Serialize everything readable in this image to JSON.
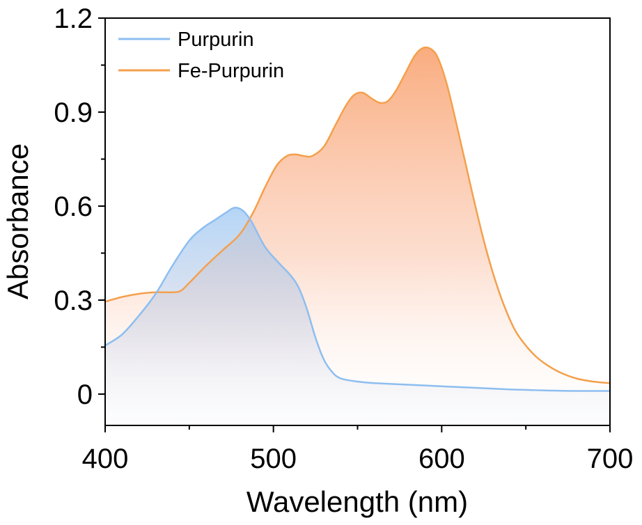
{
  "chart_data": {
    "type": "area",
    "title": "",
    "xlabel": "Wavelength (nm)",
    "ylabel": "Absorbance",
    "xlim": [
      400,
      700
    ],
    "ylim": [
      -0.1,
      1.2
    ],
    "xticks": [
      400,
      500,
      600,
      700
    ],
    "xtick_labels": [
      "400",
      "500",
      "600",
      "700"
    ],
    "yticks": [
      0,
      0.3,
      0.6,
      0.9,
      1.2
    ],
    "ytick_labels": [
      "0",
      "0.3",
      "0.6",
      "0.9",
      "1.2"
    ],
    "grid": false,
    "legend_position": "top-left",
    "series": [
      {
        "name": "Purpurin",
        "color": "#8DBEF0",
        "fill_color": "#A8CFF5",
        "x": [
          400,
          410,
          420,
          430,
          440,
          450,
          458,
          465,
          472,
          477,
          482,
          487,
          495,
          503,
          510,
          515,
          520,
          525,
          530,
          535,
          540,
          550,
          560,
          580,
          600,
          620,
          640,
          660,
          680,
          700
        ],
        "y": [
          0.155,
          0.19,
          0.25,
          0.32,
          0.41,
          0.49,
          0.53,
          0.555,
          0.58,
          0.595,
          0.585,
          0.55,
          0.47,
          0.42,
          0.38,
          0.34,
          0.27,
          0.18,
          0.11,
          0.07,
          0.05,
          0.04,
          0.035,
          0.03,
          0.025,
          0.02,
          0.015,
          0.012,
          0.01,
          0.01
        ]
      },
      {
        "name": "Fe-Purpurin",
        "color": "#F4A04C",
        "fill_color": "#F9A878",
        "x": [
          400,
          410,
          420,
          430,
          440,
          445,
          450,
          460,
          470,
          480,
          488,
          495,
          502,
          508,
          513,
          518,
          523,
          530,
          537,
          543,
          548,
          553,
          558,
          563,
          568,
          573,
          578,
          584,
          589,
          594,
          598,
          603,
          608,
          614,
          620,
          626,
          632,
          638,
          644,
          650,
          656,
          662,
          670,
          680,
          690,
          700
        ],
        "y": [
          0.295,
          0.31,
          0.32,
          0.325,
          0.325,
          0.33,
          0.355,
          0.41,
          0.46,
          0.51,
          0.58,
          0.66,
          0.73,
          0.76,
          0.765,
          0.76,
          0.76,
          0.79,
          0.86,
          0.92,
          0.955,
          0.962,
          0.945,
          0.93,
          0.935,
          0.97,
          1.02,
          1.08,
          1.105,
          1.1,
          1.07,
          0.99,
          0.88,
          0.74,
          0.6,
          0.47,
          0.36,
          0.27,
          0.2,
          0.155,
          0.12,
          0.095,
          0.07,
          0.05,
          0.04,
          0.035
        ]
      }
    ]
  }
}
